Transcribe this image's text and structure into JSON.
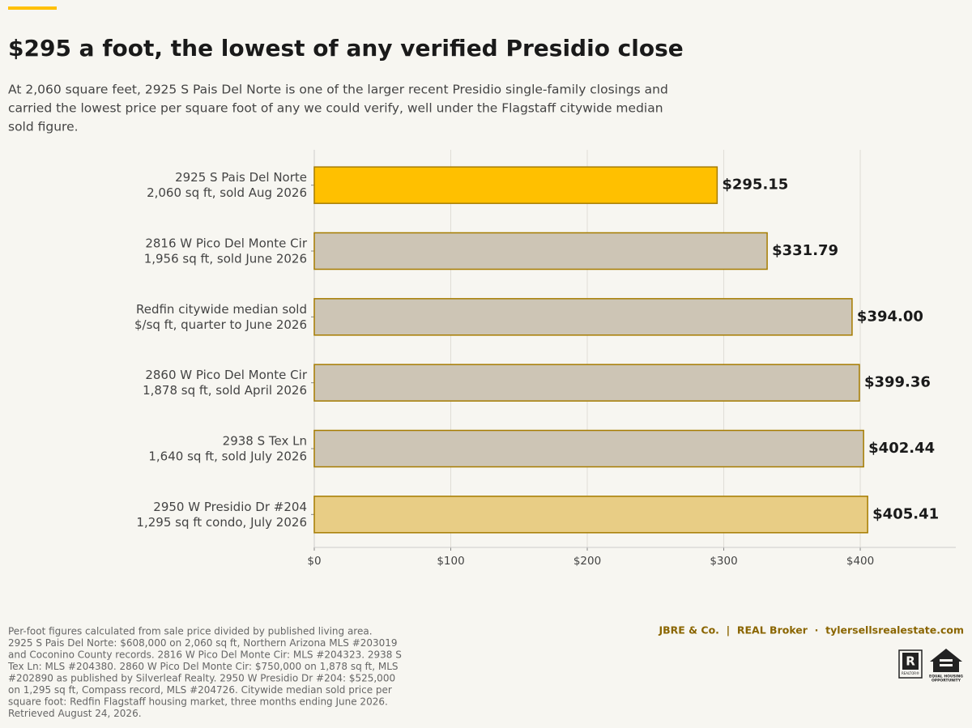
{
  "chart_data": {
    "type": "barh",
    "title": "$295 a foot, the lowest of any verified Presidio close",
    "subtitle": [
      "At 2,060 square feet, 2925 S Pais Del Norte is one of the larger recent Presidio single-family closings and",
      "carried the lowest price per square foot of any we could verify, well under the Flagstaff citywide median",
      "sold figure."
    ],
    "categories": [
      [
        "2925 S Pais Del Norte",
        "2,060 sq ft, sold Aug 2026"
      ],
      [
        "2816 W Pico Del Monte Cir",
        "1,956 sq ft, sold June 2026"
      ],
      [
        "Redfin citywide median sold",
        "$/sq ft, quarter to June 2026"
      ],
      [
        "2860 W Pico Del Monte Cir",
        "1,878 sq ft, sold April 2026"
      ],
      [
        "2938 S Tex Ln",
        "1,640 sq ft, sold July 2026"
      ],
      [
        "2950 W Presidio Dr #204",
        "1,295 sq ft condo, July 2026"
      ]
    ],
    "values": [
      295.15,
      331.79,
      394.0,
      399.36,
      402.44,
      405.41
    ],
    "value_labels": [
      "$295.15",
      "$331.79",
      "$394.00",
      "$399.36",
      "$402.44",
      "$405.41"
    ],
    "colors": [
      "#ffc000",
      "#cdc5b5",
      "#cdc5b5",
      "#cdc5b5",
      "#cdc5b5",
      "#e8cd85"
    ],
    "edgecolor": "#a67c00",
    "xlim": [
      0,
      470
    ],
    "xticks": [
      {
        "value": 0,
        "label": "$0"
      },
      {
        "value": 100,
        "label": "$100"
      },
      {
        "value": 200,
        "label": "$200"
      },
      {
        "value": 300,
        "label": "$300"
      },
      {
        "value": 400,
        "label": "$400"
      }
    ],
    "grid": true,
    "footnote": [
      "Per-foot figures calculated from sale price divided by published living area.",
      "2925 S Pais Del Norte: $608,000 on 2,060 sq ft, Northern Arizona MLS #203019",
      "and Coconino County records. 2816 W Pico Del Monte Cir: MLS #204323. 2938 S",
      "Tex Ln: MLS #204380. 2860 W Pico Del Monte Cir: $750,000 on 1,878 sq ft, MLS",
      "#202890 as published by Silverleaf Realty. 2950 W Presidio Dr #204: $525,000",
      "on 1,295 sq ft, Compass record, MLS #204726. Citywide median sold price per",
      "square foot: Redfin Flagstaff housing market, three months ending June 2026.",
      "Retrieved August 24, 2026."
    ],
    "brand": "JBRE & Co.  |  REAL Broker  ·  tylersellsrealestate.com",
    "logos": [
      "R",
      "REALTOR®",
      "EQUAL HOUSING",
      "OPPORTUNITY"
    ]
  }
}
